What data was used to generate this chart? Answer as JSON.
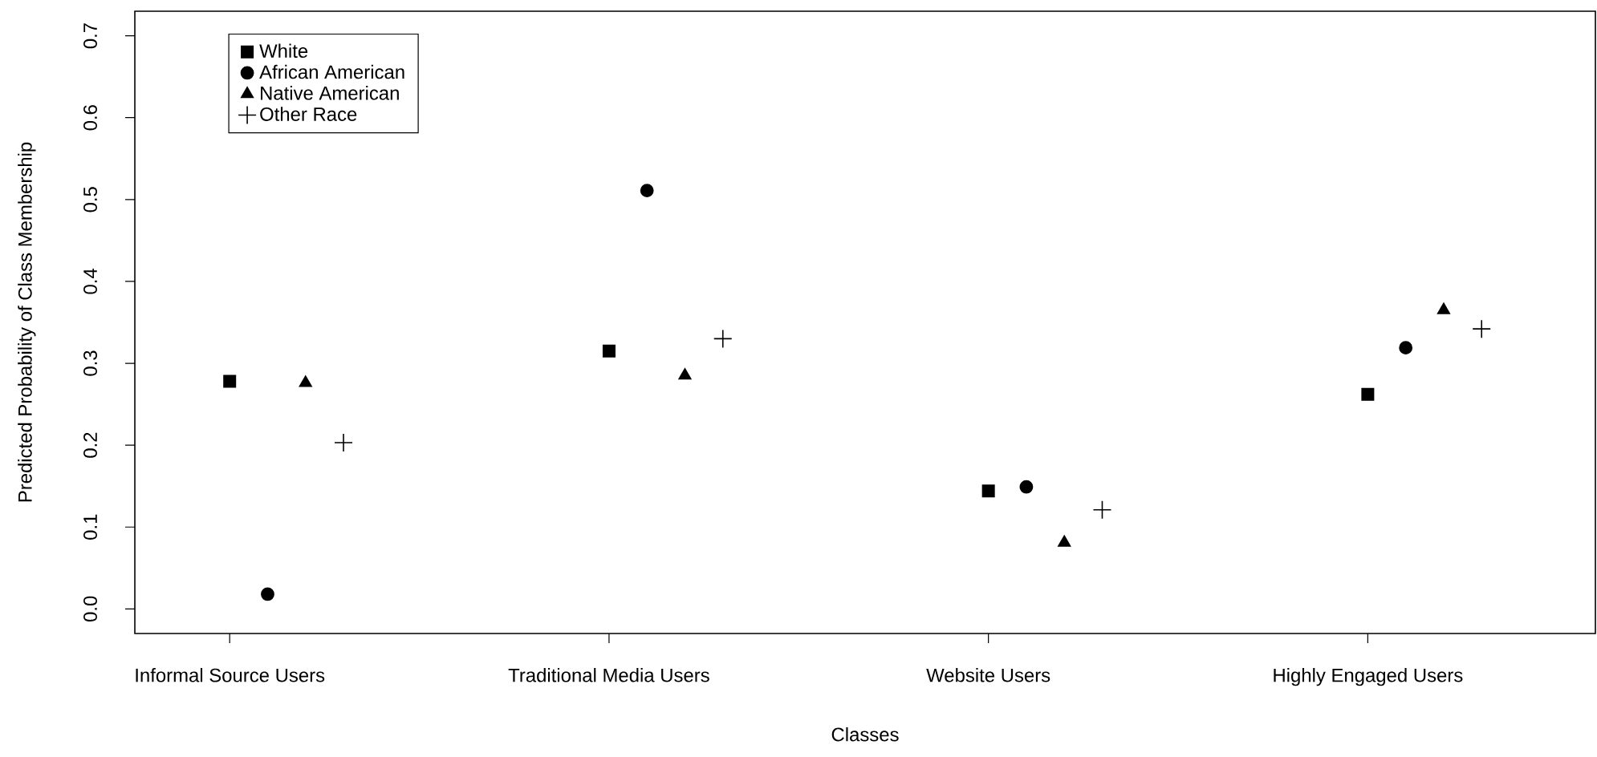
{
  "chart_data": {
    "type": "scatter",
    "xlabel": "Classes",
    "ylabel": "Predicted Probability of Class Membership",
    "categories": [
      "Informal Source Users",
      "Traditional Media Users",
      "Website Users",
      "Highly Engaged Users"
    ],
    "ylim": [
      -0.03,
      0.73
    ],
    "yticks": [
      {
        "value": 0,
        "label": "0.0"
      },
      0.1,
      0.2,
      0.3,
      0.4,
      0.5,
      0.6,
      0.7
    ],
    "legend": "top left",
    "grid": false,
    "series": [
      {
        "name": "White",
        "color": "#000000",
        "marker": "square",
        "values": [
          0.278,
          0.315,
          0.144,
          0.262
        ]
      },
      {
        "name": "African American",
        "color": "#000000",
        "marker": "circle",
        "values": [
          0.018,
          0.511,
          0.149,
          0.319
        ]
      },
      {
        "name": "Native American",
        "color": "#000000",
        "marker": "triangle",
        "values": [
          0.276,
          0.285,
          0.081,
          0.365
        ]
      },
      {
        "name": "Other Race",
        "color": "#000000",
        "marker": "cross",
        "values": [
          0.203,
          0.33,
          0.121,
          0.342
        ]
      }
    ]
  }
}
